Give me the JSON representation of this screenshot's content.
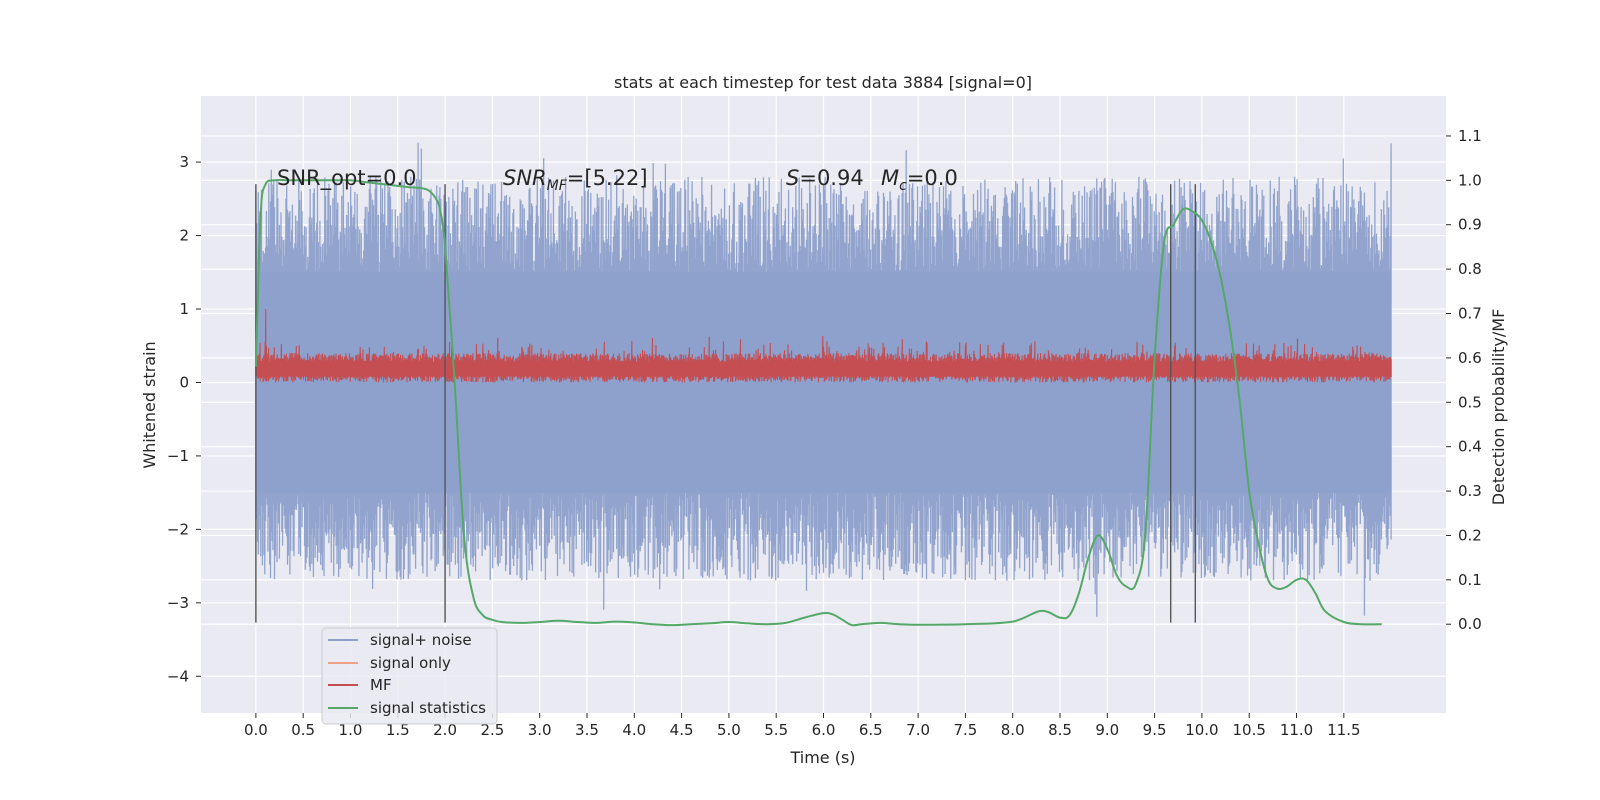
{
  "chart_data": {
    "type": "line",
    "title": "stats at each timestep for test data 3884 [signal=0]",
    "xlabel": "Time (s)",
    "ylabel_left": "Whitened strain",
    "ylabel_right": "Detection probability/MF",
    "xlim": [
      -0.58,
      12.58
    ],
    "ylim_left": [
      -4.5,
      3.9
    ],
    "ylim_right": [
      -0.2,
      1.19
    ],
    "x_ticks": [
      "0.0",
      "0.5",
      "1.0",
      "1.5",
      "2.0",
      "2.5",
      "3.0",
      "3.5",
      "4.0",
      "4.5",
      "5.0",
      "5.5",
      "6.0",
      "6.5",
      "7.0",
      "7.5",
      "8.0",
      "8.5",
      "9.0",
      "9.5",
      "10.0",
      "10.5",
      "11.0",
      "11.5"
    ],
    "y_ticks_left": [
      "−4",
      "−3",
      "−2",
      "−1",
      "0",
      "1",
      "2",
      "3"
    ],
    "y_ticks_right": [
      "0.0",
      "0.1",
      "0.2",
      "0.3",
      "0.4",
      "0.5",
      "0.6",
      "0.7",
      "0.8",
      "0.9",
      "1.0",
      "1.1"
    ],
    "grid": true,
    "legend": {
      "placement": "lower-left",
      "entries": [
        {
          "label": "signal+ noise",
          "color": "#8da0cb"
        },
        {
          "label": "signal only",
          "color": "#f0a384"
        },
        {
          "label": "MF",
          "color": "#c44e52"
        },
        {
          "label": "signal statistics",
          "color": "#55a868"
        }
      ]
    },
    "annotations": {
      "snr_opt": "SNR_opt=0.0",
      "snr_mf_sym": "SNR",
      "snr_mf_sub": "MF",
      "snr_mf_val": "=[5.22]",
      "s_sym": "S",
      "s_val": "=0.94",
      "mc_sym": "M",
      "mc_sub": "c",
      "mc_val": "=0.0"
    },
    "vertical_lines": [
      0.0,
      2.0,
      9.67,
      9.93
    ],
    "vertical_line_range_left": [
      -3.27,
      2.7
    ],
    "noise_series": {
      "name": "signal+ noise",
      "x_range": [
        0.0,
        12.0
      ],
      "envelope_core": [
        -1.5,
        1.5
      ],
      "typical_extremes": [
        -2.7,
        2.8
      ],
      "color": "#8da0cb"
    },
    "mf_series": {
      "name": "MF",
      "x_range": [
        0.0,
        12.0
      ],
      "band": [
        0.0,
        0.4
      ],
      "peak": 1.0,
      "color": "#c44e52"
    },
    "statistics_series": {
      "name": "signal statistics",
      "axis": "right",
      "color": "#55a868",
      "x": [
        0.0,
        0.05,
        0.1,
        0.2,
        0.4,
        0.8,
        1.0,
        1.2,
        1.4,
        1.6,
        1.8,
        1.9,
        1.95,
        2.0,
        2.1,
        2.2,
        2.3,
        2.4,
        2.5,
        2.6,
        2.8,
        3.0,
        3.2,
        3.4,
        3.6,
        3.8,
        4.0,
        4.2,
        4.4,
        4.6,
        4.8,
        5.0,
        5.2,
        5.4,
        5.6,
        5.8,
        6.0,
        6.1,
        6.2,
        6.3,
        6.4,
        6.6,
        6.8,
        7.0,
        7.5,
        8.0,
        8.3,
        8.5,
        8.6,
        8.7,
        8.8,
        8.9,
        9.0,
        9.1,
        9.2,
        9.3,
        9.4,
        9.5,
        9.6,
        9.7,
        9.8,
        9.9,
        10.0,
        10.1,
        10.2,
        10.3,
        10.4,
        10.5,
        10.6,
        10.7,
        10.8,
        10.9,
        11.0,
        11.1,
        11.2,
        11.3,
        11.5,
        11.7,
        11.9
      ],
      "y": [
        0.58,
        0.92,
        0.99,
        1.0,
        1.0,
        1.0,
        1.0,
        0.995,
        0.99,
        0.985,
        0.98,
        0.96,
        0.93,
        0.85,
        0.55,
        0.2,
        0.06,
        0.02,
        0.01,
        0.005,
        0.003,
        0.005,
        0.008,
        0.005,
        0.003,
        0.006,
        0.004,
        0.0,
        -0.002,
        0.0,
        0.002,
        0.005,
        0.002,
        0.0,
        0.003,
        0.015,
        0.025,
        0.022,
        0.01,
        -0.002,
        0.0,
        0.003,
        0.0,
        -0.001,
        0.0,
        0.006,
        0.03,
        0.015,
        0.02,
        0.07,
        0.15,
        0.2,
        0.17,
        0.11,
        0.085,
        0.09,
        0.2,
        0.6,
        0.86,
        0.9,
        0.935,
        0.93,
        0.91,
        0.86,
        0.78,
        0.66,
        0.5,
        0.3,
        0.18,
        0.1,
        0.08,
        0.085,
        0.1,
        0.1,
        0.07,
        0.03,
        0.005,
        0.0,
        0.0
      ]
    }
  }
}
